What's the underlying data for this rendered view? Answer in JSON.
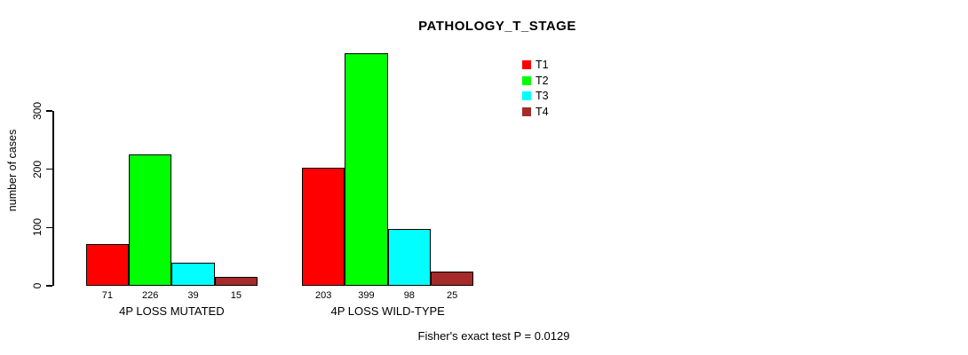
{
  "title": "PATHOLOGY_T_STAGE",
  "y_axis": {
    "label": "number of cases",
    "ticks": [
      0,
      100,
      200,
      300
    ]
  },
  "legend": {
    "entries": [
      {
        "label": "T1",
        "color": "#FF0000"
      },
      {
        "label": "T2",
        "color": "#00FF00"
      },
      {
        "label": "T3",
        "color": "#00FFFF"
      },
      {
        "label": "T4",
        "color": "#A52A2A"
      }
    ]
  },
  "footer_annotation": "Fisher's exact test P = 0.0129",
  "chart_data": {
    "type": "bar",
    "title": "PATHOLOGY_T_STAGE",
    "xlabel": "",
    "ylabel": "number of cases",
    "categories": [
      "4P LOSS MUTATED",
      "4P LOSS WILD-TYPE"
    ],
    "series": [
      {
        "name": "T1",
        "color": "#FF0000",
        "values": [
          71,
          203
        ]
      },
      {
        "name": "T2",
        "color": "#00FF00",
        "values": [
          226,
          399
        ]
      },
      {
        "name": "T3",
        "color": "#00FFFF",
        "values": [
          39,
          98
        ]
      },
      {
        "name": "T4",
        "color": "#A52A2A",
        "values": [
          15,
          25
        ]
      }
    ],
    "bar_value_labels": [
      [
        71,
        226,
        39,
        15
      ],
      [
        203,
        399,
        98,
        25
      ]
    ],
    "yticks": [
      0,
      100,
      200,
      300
    ],
    "ylim": [
      0,
      410
    ],
    "grid": false,
    "legend_position": "top-right",
    "annotation": "Fisher's exact test P = 0.0129"
  }
}
